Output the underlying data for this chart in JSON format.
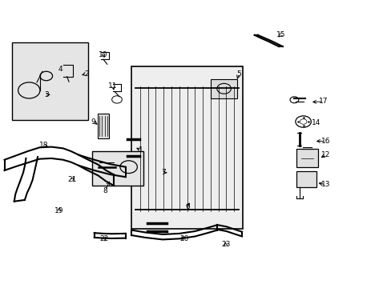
{
  "bg_color": "#ffffff",
  "fig_width": 4.89,
  "fig_height": 3.6,
  "dpi": 100,
  "label_positions": {
    "1": [
      0.36,
      0.478,
      0.342,
      0.49
    ],
    "2": [
      0.22,
      0.745,
      0.202,
      0.738
    ],
    "3": [
      0.118,
      0.672,
      0.133,
      0.672
    ],
    "4": [
      0.153,
      0.762,
      0.158,
      0.754
    ],
    "5": [
      0.61,
      0.745,
      0.604,
      0.718
    ],
    "6": [
      0.478,
      0.282,
      0.488,
      0.302
    ],
    "7": [
      0.418,
      0.4,
      0.432,
      0.4
    ],
    "8": [
      0.268,
      0.338,
      0.282,
      0.378
    ],
    "9": [
      0.238,
      0.578,
      0.253,
      0.563
    ],
    "10": [
      0.263,
      0.812,
      0.266,
      0.8
    ],
    "11": [
      0.288,
      0.702,
      0.29,
      0.687
    ],
    "12": [
      0.832,
      0.462,
      0.815,
      0.448
    ],
    "13": [
      0.832,
      0.358,
      0.808,
      0.366
    ],
    "14": [
      0.807,
      0.575,
      0.799,
      0.573
    ],
    "15": [
      0.717,
      0.88,
      0.707,
      0.867
    ],
    "16": [
      0.832,
      0.51,
      0.802,
      0.51
    ],
    "17": [
      0.827,
      0.648,
      0.792,
      0.646
    ],
    "18": [
      0.11,
      0.496,
      0.128,
      0.486
    ],
    "19": [
      0.15,
      0.268,
      0.153,
      0.288
    ],
    "20": [
      0.47,
      0.17,
      0.458,
      0.183
    ],
    "21": [
      0.183,
      0.376,
      0.193,
      0.39
    ],
    "22": [
      0.266,
      0.17,
      0.273,
      0.183
    ],
    "23": [
      0.576,
      0.15,
      0.573,
      0.166
    ]
  }
}
